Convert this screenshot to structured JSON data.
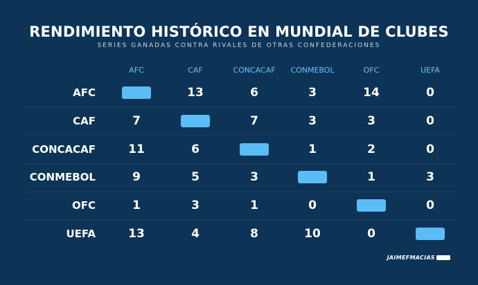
{
  "chart_data": {
    "type": "table",
    "title": "RENDIMIENTO HISTÓRICO EN MUNDIAL DE CLUBES",
    "subtitle": "SERIES GANADAS CONTRA RIVALES DE OTRAS CONFEDERACIONES",
    "columns": [
      "AFC",
      "CAF",
      "CONCACAF",
      "CONMEBOL",
      "OFC",
      "UEFA"
    ],
    "rows": [
      {
        "label": "AFC",
        "values": [
          null,
          13,
          6,
          3,
          14,
          0
        ]
      },
      {
        "label": "CAF",
        "values": [
          7,
          null,
          7,
          3,
          3,
          0
        ]
      },
      {
        "label": "CONCACAF",
        "values": [
          11,
          6,
          null,
          1,
          2,
          0
        ]
      },
      {
        "label": "CONMEBOL",
        "values": [
          9,
          5,
          3,
          null,
          1,
          3
        ]
      },
      {
        "label": "OFC",
        "values": [
          1,
          3,
          1,
          0,
          null,
          0
        ]
      },
      {
        "label": "UEFA",
        "values": [
          13,
          4,
          8,
          10,
          0,
          null
        ]
      }
    ]
  },
  "colors": {
    "background": "#0d3457",
    "header_text": "#6cc0f5",
    "diagonal_fill": "#5bbcf6",
    "value_text": "#ffffff"
  },
  "credit": "JAIMEFMACIAS"
}
